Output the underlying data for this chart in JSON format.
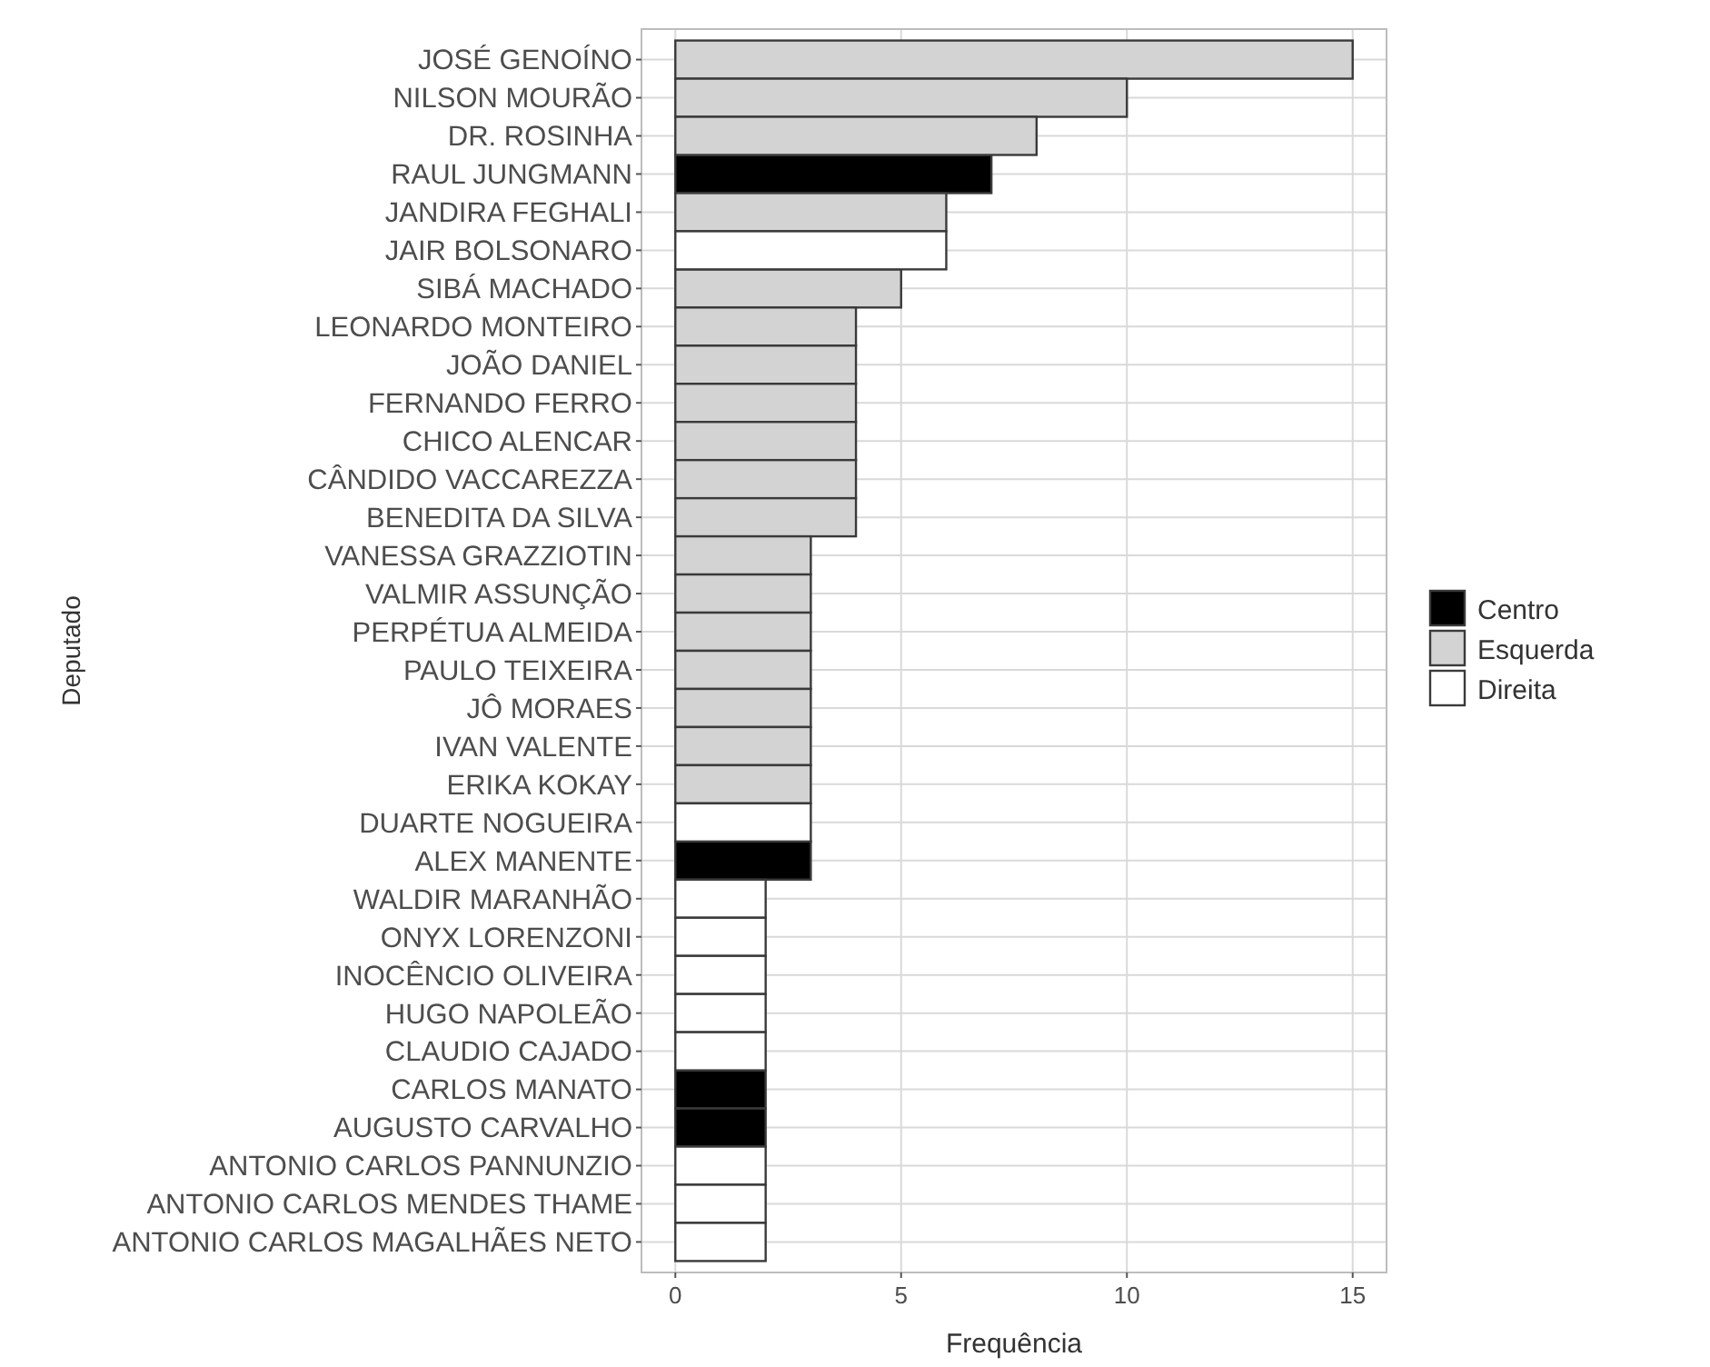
{
  "chart_data": {
    "type": "bar",
    "orientation": "horizontal",
    "xlabel": "Frequência",
    "ylabel": "Deputado",
    "categories": [
      "JOSÉ GENOÍNO",
      "NILSON MOURÃO",
      "DR. ROSINHA",
      "RAUL JUNGMANN",
      "JANDIRA FEGHALI",
      "JAIR BOLSONARO",
      "SIBÁ MACHADO",
      "LEONARDO MONTEIRO",
      "JOÃO DANIEL",
      "FERNANDO FERRO",
      "CHICO ALENCAR",
      "CÂNDIDO VACCAREZZA",
      "BENEDITA DA SILVA",
      "VANESSA GRAZZIOTIN",
      "VALMIR ASSUNÇÃO",
      "PERPÉTUA ALMEIDA",
      "PAULO TEIXEIRA",
      "JÔ MORAES",
      "IVAN VALENTE",
      "ERIKA KOKAY",
      "DUARTE NOGUEIRA",
      "ALEX MANENTE",
      "WALDIR MARANHÃO",
      "ONYX LORENZONI",
      "INOCÊNCIO OLIVEIRA",
      "HUGO NAPOLEÃO",
      "CLAUDIO CAJADO",
      "CARLOS MANATO",
      "AUGUSTO CARVALHO",
      "ANTONIO CARLOS PANNUNZIO",
      "ANTONIO CARLOS MENDES THAME",
      "ANTONIO CARLOS MAGALHÃES NETO"
    ],
    "series": [
      {
        "name": "Centro",
        "color": "#000000",
        "values": [
          null,
          null,
          null,
          7,
          null,
          null,
          null,
          null,
          null,
          null,
          null,
          null,
          null,
          null,
          null,
          null,
          null,
          null,
          null,
          null,
          null,
          3,
          null,
          null,
          null,
          null,
          null,
          2,
          2,
          null,
          null,
          null
        ]
      },
      {
        "name": "Esquerda",
        "color": "#d3d3d3",
        "values": [
          15,
          10,
          8,
          null,
          6,
          null,
          5,
          4,
          4,
          4,
          4,
          4,
          4,
          3,
          3,
          3,
          3,
          3,
          3,
          3,
          null,
          null,
          null,
          null,
          null,
          null,
          null,
          null,
          null,
          null,
          null,
          null
        ]
      },
      {
        "name": "Direita",
        "color": "#ffffff",
        "values": [
          null,
          null,
          null,
          null,
          null,
          6,
          null,
          null,
          null,
          null,
          null,
          null,
          null,
          null,
          null,
          null,
          null,
          null,
          null,
          null,
          3,
          null,
          2,
          2,
          2,
          2,
          2,
          null,
          null,
          2,
          2,
          2
        ]
      }
    ],
    "xlim": [
      -0.75,
      15.75
    ],
    "xticks": [
      0,
      5,
      10,
      15
    ],
    "grid": true,
    "legend": "right"
  }
}
